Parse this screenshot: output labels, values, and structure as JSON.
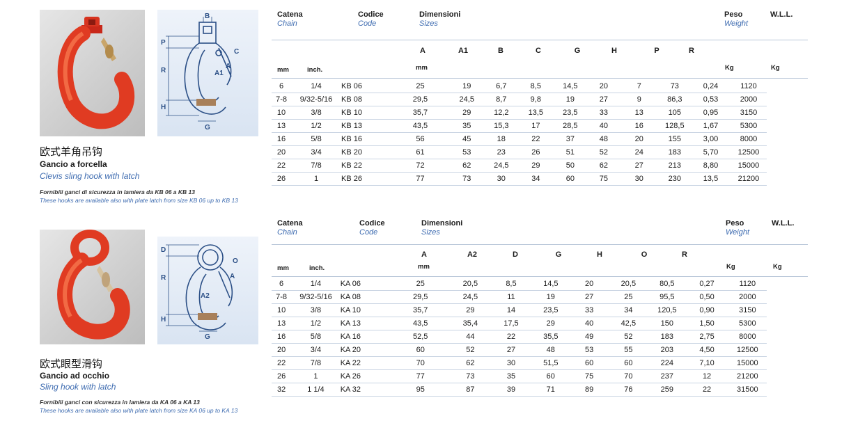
{
  "products": [
    {
      "name_cn": "欧式羊角吊钩",
      "name_it": "Gancio a forcella",
      "name_en": "Clevis sling hook with latch",
      "note_it": "Fornibili ganci di sicurezza in lamiera da KB 06 a KB 13",
      "note_en": "These hooks are available also with plate latch from size KB 06 up to KB 13",
      "headers": {
        "catena": "Catena",
        "chain": "Chain",
        "codice": "Codice",
        "code": "Code",
        "dimensioni": "Dimensioni",
        "sizes": "Sizes",
        "peso": "Peso",
        "weight": "Weight",
        "wll": "W.L.L.",
        "mm": "mm",
        "inch": "inch.",
        "dim_unit": "mm",
        "kg_weight": "Kg",
        "kg_wll": "Kg"
      },
      "columns": [
        "A",
        "A1",
        "B",
        "C",
        "G",
        "H",
        "P",
        "R"
      ],
      "drawing_labels": [
        "P",
        "R",
        "H",
        "B",
        "C",
        "A",
        "A1",
        "G"
      ],
      "rows": [
        [
          "6",
          "1/4",
          "KB 06",
          "25",
          "19",
          "6,7",
          "8,5",
          "14,5",
          "20",
          "7",
          "73",
          "0,24",
          "1120"
        ],
        [
          "7-8",
          "9/32-5/16",
          "KB 08",
          "29,5",
          "24,5",
          "8,7",
          "9,8",
          "19",
          "27",
          "9",
          "86,3",
          "0,53",
          "2000"
        ],
        [
          "10",
          "3/8",
          "KB 10",
          "35,7",
          "29",
          "12,2",
          "13,5",
          "23,5",
          "33",
          "13",
          "105",
          "0,95",
          "3150"
        ],
        [
          "13",
          "1/2",
          "KB 13",
          "43,5",
          "35",
          "15,3",
          "17",
          "28,5",
          "40",
          "16",
          "128,5",
          "1,67",
          "5300"
        ],
        [
          "16",
          "5/8",
          "KB 16",
          "56",
          "45",
          "18",
          "22",
          "37",
          "48",
          "20",
          "155",
          "3,00",
          "8000"
        ],
        [
          "20",
          "3/4",
          "KB 20",
          "61",
          "53",
          "23",
          "26",
          "51",
          "52",
          "24",
          "183",
          "5,70",
          "12500"
        ],
        [
          "22",
          "7/8",
          "KB 22",
          "72",
          "62",
          "24,5",
          "29",
          "50",
          "62",
          "27",
          "213",
          "8,80",
          "15000"
        ],
        [
          "26",
          "1",
          "KB 26",
          "77",
          "73",
          "30",
          "34",
          "60",
          "75",
          "30",
          "230",
          "13,5",
          "21200"
        ]
      ]
    },
    {
      "name_cn": "欧式眼型滑钩",
      "name_it": "Gancio ad occhio",
      "name_en": "Sling hook with latch",
      "note_it": "Fornibili ganci con sicurezza in lamiera da KA 06 a KA 13",
      "note_en": "These hooks are available also with plate latch from size KA 06 up to KA 13",
      "headers": {
        "catena": "Catena",
        "chain": "Chain",
        "codice": "Codice",
        "code": "Code",
        "dimensioni": "Dimensioni",
        "sizes": "Sizes",
        "peso": "Peso",
        "weight": "Weight",
        "wll": "W.L.L.",
        "mm": "mm",
        "inch": "inch.",
        "dim_unit": "mm",
        "kg_weight": "Kg",
        "kg_wll": "Kg"
      },
      "columns": [
        "A",
        "A2",
        "D",
        "G",
        "H",
        "O",
        "R"
      ],
      "drawing_labels": [
        "D",
        "R",
        "H",
        "O",
        "A",
        "A2",
        "G"
      ],
      "rows": [
        [
          "6",
          "1/4",
          "KA 06",
          "25",
          "20,5",
          "8,5",
          "14,5",
          "20",
          "20,5",
          "80,5",
          "0,27",
          "1120"
        ],
        [
          "7-8",
          "9/32-5/16",
          "KA 08",
          "29,5",
          "24,5",
          "11",
          "19",
          "27",
          "25",
          "95,5",
          "0,50",
          "2000"
        ],
        [
          "10",
          "3/8",
          "KA 10",
          "35,7",
          "29",
          "14",
          "23,5",
          "33",
          "34",
          "120,5",
          "0,90",
          "3150"
        ],
        [
          "13",
          "1/2",
          "KA 13",
          "43,5",
          "35,4",
          "17,5",
          "29",
          "40",
          "42,5",
          "150",
          "1,50",
          "5300"
        ],
        [
          "16",
          "5/8",
          "KA 16",
          "52,5",
          "44",
          "22",
          "35,5",
          "49",
          "52",
          "183",
          "2,75",
          "8000"
        ],
        [
          "20",
          "3/4",
          "KA 20",
          "60",
          "52",
          "27",
          "48",
          "53",
          "55",
          "203",
          "4,50",
          "12500"
        ],
        [
          "22",
          "7/8",
          "KA 22",
          "70",
          "62",
          "30",
          "51,5",
          "60",
          "60",
          "224",
          "7,10",
          "15000"
        ],
        [
          "26",
          "1",
          "KA 26",
          "77",
          "73",
          "35",
          "60",
          "75",
          "70",
          "237",
          "12",
          "21200"
        ],
        [
          "32",
          "1 1/4",
          "KA 32",
          "95",
          "87",
          "39",
          "71",
          "89",
          "76",
          "259",
          "22",
          "31500"
        ]
      ]
    }
  ]
}
